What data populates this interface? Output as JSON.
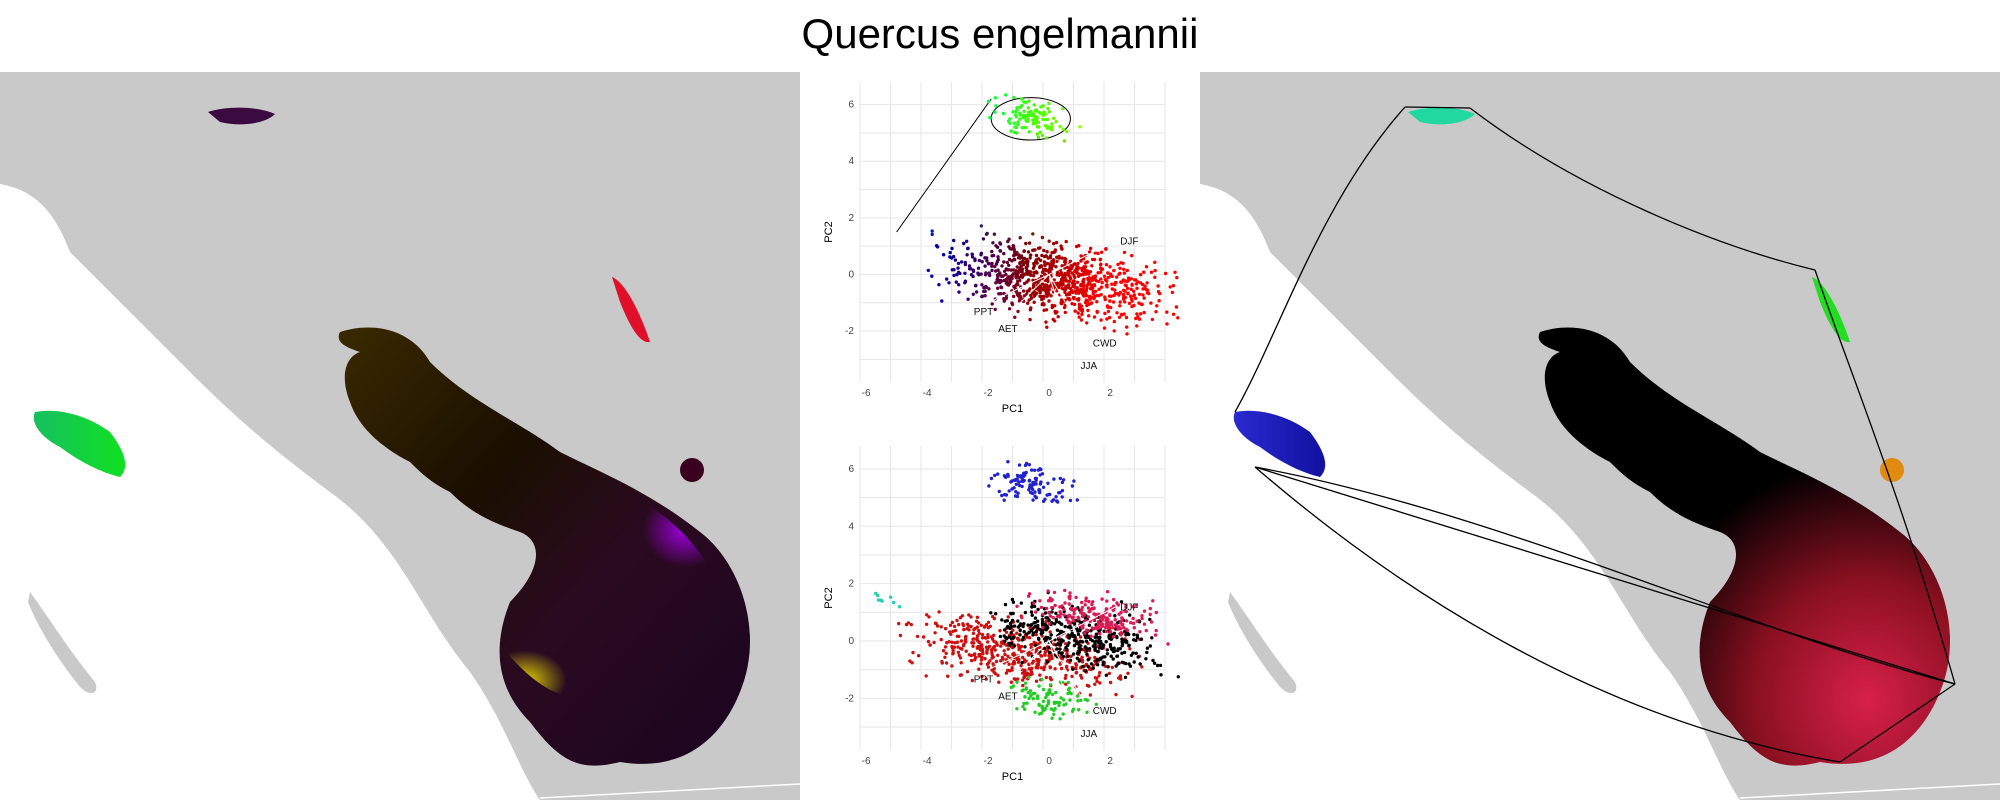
{
  "figure": {
    "title": "Quercus engelmannii"
  },
  "colors": {
    "land": "#c9c9c9",
    "ocean": "#ffffff",
    "grid": "#e6e6e6",
    "arrow": "#ffffff",
    "hull": "#000000"
  },
  "chart_data": [
    {
      "type": "scatter",
      "panel": "pca-top",
      "title": "",
      "xlabel": "PC1",
      "ylabel": "PC2",
      "xlim": [
        -6.2,
        3.8
      ],
      "ylim": [
        -3.8,
        6.8
      ],
      "xticks": [
        -6,
        -4,
        -2,
        0,
        2
      ],
      "yticks": [
        -2,
        0,
        2,
        4,
        6
      ],
      "grid": true,
      "coloring": "rgb gradient by position",
      "vectors": [
        {
          "label": "DJF",
          "x": 2.2,
          "y": 1.2
        },
        {
          "label": "PPT",
          "x": -2.6,
          "y": -1.3
        },
        {
          "label": "AET",
          "x": -1.8,
          "y": -1.9
        },
        {
          "label": "CWD",
          "x": 1.3,
          "y": -2.4
        },
        {
          "label": "JJA",
          "x": 0.9,
          "y": -3.2
        }
      ],
      "clusters": [
        {
          "name": "",
          "center": [
            -0.6,
            5.5
          ],
          "spread": [
            0.9,
            0.45
          ],
          "n": 110
        },
        {
          "name": "",
          "center": [
            0.2,
            -0.2
          ],
          "spread": [
            2.4,
            0.9
          ],
          "n": 900
        }
      ]
    },
    {
      "type": "scatter",
      "panel": "pca-bottom",
      "title": "",
      "xlabel": "PC1",
      "ylabel": "PC2",
      "xlim": [
        -6.2,
        3.8
      ],
      "ylim": [
        -3.8,
        6.8
      ],
      "xticks": [
        -6,
        -4,
        -2,
        0,
        2
      ],
      "yticks": [
        -2,
        0,
        2,
        4,
        6
      ],
      "grid": true,
      "coloring": "cluster colors",
      "vectors": [
        {
          "label": "DJF",
          "x": 2.2,
          "y": 1.2
        },
        {
          "label": "PPT",
          "x": -2.6,
          "y": -1.3
        },
        {
          "label": "AET",
          "x": -1.8,
          "y": -1.9
        },
        {
          "label": "CWD",
          "x": 1.3,
          "y": -2.4
        },
        {
          "label": "JJA",
          "x": 0.9,
          "y": -3.2
        }
      ],
      "clusters": [
        {
          "name": "",
          "color": "#2222cc",
          "center": [
            -0.6,
            5.5
          ],
          "spread": [
            0.9,
            0.45
          ],
          "n": 110
        },
        {
          "name": "",
          "color": "#cc1111",
          "center": [
            -1.0,
            -0.4
          ],
          "spread": [
            2.4,
            0.8
          ],
          "n": 500
        },
        {
          "name": "",
          "color": "#000000",
          "center": [
            0.9,
            0.2
          ],
          "spread": [
            1.9,
            0.8
          ],
          "n": 400
        },
        {
          "name": "",
          "color": "#dd1a55",
          "center": [
            1.4,
            0.9
          ],
          "spread": [
            1.4,
            0.5
          ],
          "n": 200
        },
        {
          "name": "",
          "color": "#22cc22",
          "center": [
            0.0,
            -2.0
          ],
          "spread": [
            0.9,
            0.5
          ],
          "n": 90
        },
        {
          "name": "",
          "color": "#20d0b0",
          "center": [
            -5.3,
            1.4
          ],
          "spread": [
            0.3,
            0.2
          ],
          "n": 8
        }
      ]
    }
  ]
}
